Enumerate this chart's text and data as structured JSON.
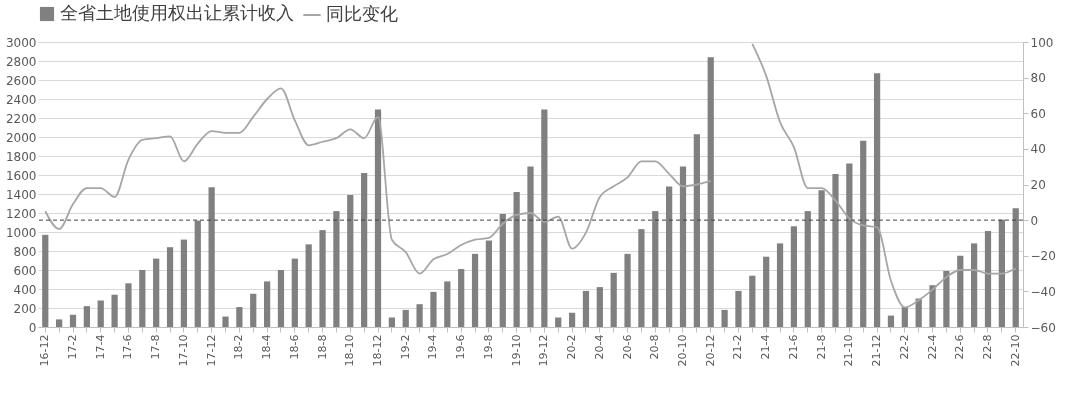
{
  "chart_data": {
    "type": "bar",
    "categories": [
      "16-12",
      null,
      "17-2",
      null,
      "17-4",
      null,
      "17-6",
      null,
      "17-8",
      null,
      "17-10",
      null,
      "17-12",
      null,
      "18-2",
      null,
      "18-4",
      null,
      "18-6",
      null,
      "18-8",
      null,
      "18-10",
      null,
      "18-12",
      null,
      "19-2",
      null,
      "19-4",
      null,
      "19-6",
      null,
      "19-8",
      null,
      "19-10",
      null,
      "19-12",
      null,
      "20-2",
      null,
      "20-4",
      null,
      "20-6",
      null,
      "20-8",
      null,
      "20-10",
      null,
      "20-12",
      null,
      "21-2",
      null,
      "21-4",
      null,
      "21-6",
      null,
      "21-8",
      null,
      "21-10",
      null,
      "21-12",
      null,
      "22-2",
      null,
      "22-4",
      null,
      "22-6",
      null,
      "22-8",
      null,
      "22-10"
    ],
    "series": [
      {
        "name": "全省土地使用权出让累计收入",
        "color": "#808080",
        "values": [
          970,
          80,
          130,
          220,
          280,
          340,
          460,
          600,
          720,
          840,
          920,
          1120,
          1470,
          110,
          210,
          350,
          480,
          600,
          720,
          870,
          1020,
          1220,
          1390,
          1620,
          2290,
          100,
          180,
          240,
          370,
          480,
          610,
          770,
          910,
          1190,
          1420,
          1690,
          2290,
          100,
          150,
          380,
          420,
          570,
          770,
          1030,
          1220,
          1480,
          1690,
          2030,
          2840,
          180,
          380,
          540,
          740,
          880,
          1060,
          1220,
          1440,
          1610,
          1720,
          1960,
          2670,
          120,
          210,
          300,
          440,
          590,
          750,
          880,
          1010,
          1130,
          1250
        ]
      },
      {
        "name": "同比变化",
        "type": "line",
        "axis": "y2",
        "color": "#a6a6a6",
        "values": [
          5,
          -5,
          9,
          18,
          18,
          13,
          34,
          45,
          46,
          47,
          33,
          43,
          50,
          49,
          49,
          58,
          68,
          74,
          56,
          42,
          44,
          46,
          51,
          46,
          58,
          -11,
          -18,
          -30,
          -22,
          -19,
          -14,
          -11,
          -10,
          -2,
          3,
          4,
          -1,
          2,
          -16,
          -7,
          13,
          19,
          24,
          33,
          33,
          26,
          19,
          20,
          22,
          null,
          null,
          99,
          81,
          55,
          41,
          18,
          18,
          11,
          1,
          -3,
          -4,
          -34,
          -49,
          -45,
          -39,
          -32,
          -28,
          -28,
          -30,
          -30,
          -27
        ]
      }
    ],
    "ylim": [
      0,
      3000
    ],
    "yticks": [
      0,
      200,
      400,
      600,
      800,
      1000,
      1200,
      1400,
      1600,
      1800,
      2000,
      2200,
      2400,
      2600,
      2800,
      3000
    ],
    "y2lim": [
      -60,
      100
    ],
    "y2ticks": [
      -60,
      -40,
      -20,
      0,
      20,
      40,
      60,
      80,
      100
    ],
    "ref_lines": [
      {
        "axis": "y2",
        "value": 0,
        "color": "#404040",
        "line_style": "dashed"
      }
    ],
    "grid": "y",
    "legend": "top"
  }
}
